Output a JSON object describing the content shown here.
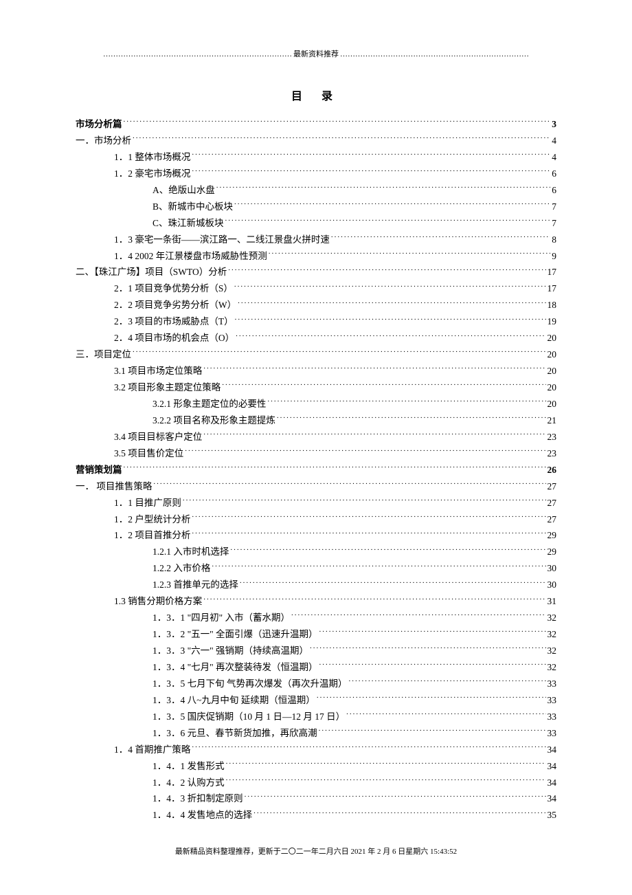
{
  "header_dots_left": "…………………………………………………………………",
  "header_label": "最新资料推荐",
  "header_dots_right": "…………………………………………………………………",
  "title": "目   录",
  "toc": [
    {
      "label": "市场分析篇",
      "page": "3",
      "indent": 0,
      "bold": true
    },
    {
      "label": "一．市场分析",
      "page": "4",
      "indent": 0
    },
    {
      "label": "1．1 整体市场概况",
      "page": "4",
      "indent": 1
    },
    {
      "label": "1．2 豪宅市场概况",
      "page": "6",
      "indent": 1
    },
    {
      "label": "A、绝版山水盘",
      "page": "6",
      "indent": 2
    },
    {
      "label": "B、新城市中心板块",
      "page": "7",
      "indent": 2
    },
    {
      "label": "C、珠江新城板块",
      "page": "7",
      "indent": 2
    },
    {
      "label": "1．3 豪宅一条街——滨江路一、二线江景盘火拼时速",
      "page": "8",
      "indent": 1
    },
    {
      "label": "1．4   2002 年江景楼盘市场威胁性预测",
      "page": "9",
      "indent": 1
    },
    {
      "label": "二、【珠江广场】项目（SWTO）分析",
      "page": "17",
      "indent": 0
    },
    {
      "label": "2．1 项目竞争优势分析（S）",
      "page": "17",
      "indent": 1
    },
    {
      "label": "2．2 项目竞争劣势分析（W）",
      "page": "18",
      "indent": 1
    },
    {
      "label": "2．3 项目的市场威胁点（T）",
      "page": "19",
      "indent": 1
    },
    {
      "label": "2．4 项目市场的机会点（O）",
      "page": "20",
      "indent": 1
    },
    {
      "label": "三．项目定位",
      "page": "20",
      "indent": 0
    },
    {
      "label": "3.1 项目市场定位策略",
      "page": "20",
      "indent": 1
    },
    {
      "label": "3.2  项目形象主题定位策略",
      "page": "20",
      "indent": 1
    },
    {
      "label": "3.2.1 形象主题定位的必要性",
      "page": "20",
      "indent": 2
    },
    {
      "label": "3.2.2  项目名称及形象主题提炼",
      "page": "21",
      "indent": 2
    },
    {
      "label": "3.4  项目目标客户定位",
      "page": "23",
      "indent": 1
    },
    {
      "label": "3.5  项目售价定位",
      "page": "23",
      "indent": 1
    },
    {
      "label": "营销策划篇",
      "page": "26",
      "indent": 0,
      "bold": true
    },
    {
      "label": "一．      项目推售策略",
      "page": "27",
      "indent": 0
    },
    {
      "label": "1．1 目推广原则",
      "page": "27",
      "indent": 1
    },
    {
      "label": "1．2 户型统计分析",
      "page": "27",
      "indent": 1
    },
    {
      "label": "1．2  项目首推分析",
      "page": "29",
      "indent": 1
    },
    {
      "label": "1.2.1 入市时机选择",
      "page": "29",
      "indent": 2
    },
    {
      "label": "1.2.2 入市价格",
      "page": "30",
      "indent": 2
    },
    {
      "label": "1.2.3 首推单元的选择",
      "page": "30",
      "indent": 2
    },
    {
      "label": "1.3 销售分期价格方案",
      "page": "31",
      "indent": 1
    },
    {
      "label": "1．3．1 \"四月初\" 入市（蓄水期）",
      "page": "32",
      "indent": 2
    },
    {
      "label": "1．3．2 \"五一\" 全面引爆（迅速升温期）",
      "page": "32",
      "indent": 2
    },
    {
      "label": "1．3．3 \"六一\" 强销期（持续高温期）",
      "page": "32",
      "indent": 2
    },
    {
      "label": "1．3．4 \"七月\"  再次整装待发（恒温期）",
      "page": "32",
      "indent": 2
    },
    {
      "label": "1．3．5 七月下旬 气势再次爆发（再次升温期）",
      "page": "33",
      "indent": 2
    },
    {
      "label": "1．3．4 八~九月中旬  延续期（恒温期）",
      "page": "33",
      "indent": 2
    },
    {
      "label": "1．3．5 国庆促销期（10 月 1 日—12 月 17 日）",
      "page": "33",
      "indent": 2
    },
    {
      "label": "1．3．6 元旦、春节新货加推，再欣高潮",
      "page": "33",
      "indent": 2
    },
    {
      "label": "1．4  首期推广策略",
      "page": "34",
      "indent": 1
    },
    {
      "label": "1．4．1 发售形式",
      "page": "34",
      "indent": 2
    },
    {
      "label": "1．4．2 认购方式",
      "page": "34",
      "indent": 2
    },
    {
      "label": "1．4．3 折扣制定原则",
      "page": "34",
      "indent": 2
    },
    {
      "label": "1．4．4 发售地点的选择",
      "page": "35",
      "indent": 2
    }
  ],
  "footer": "最新精品资料整理推荐，更新于二〇二一年二月六日 2021 年 2 月 6 日星期六 15:43:52"
}
